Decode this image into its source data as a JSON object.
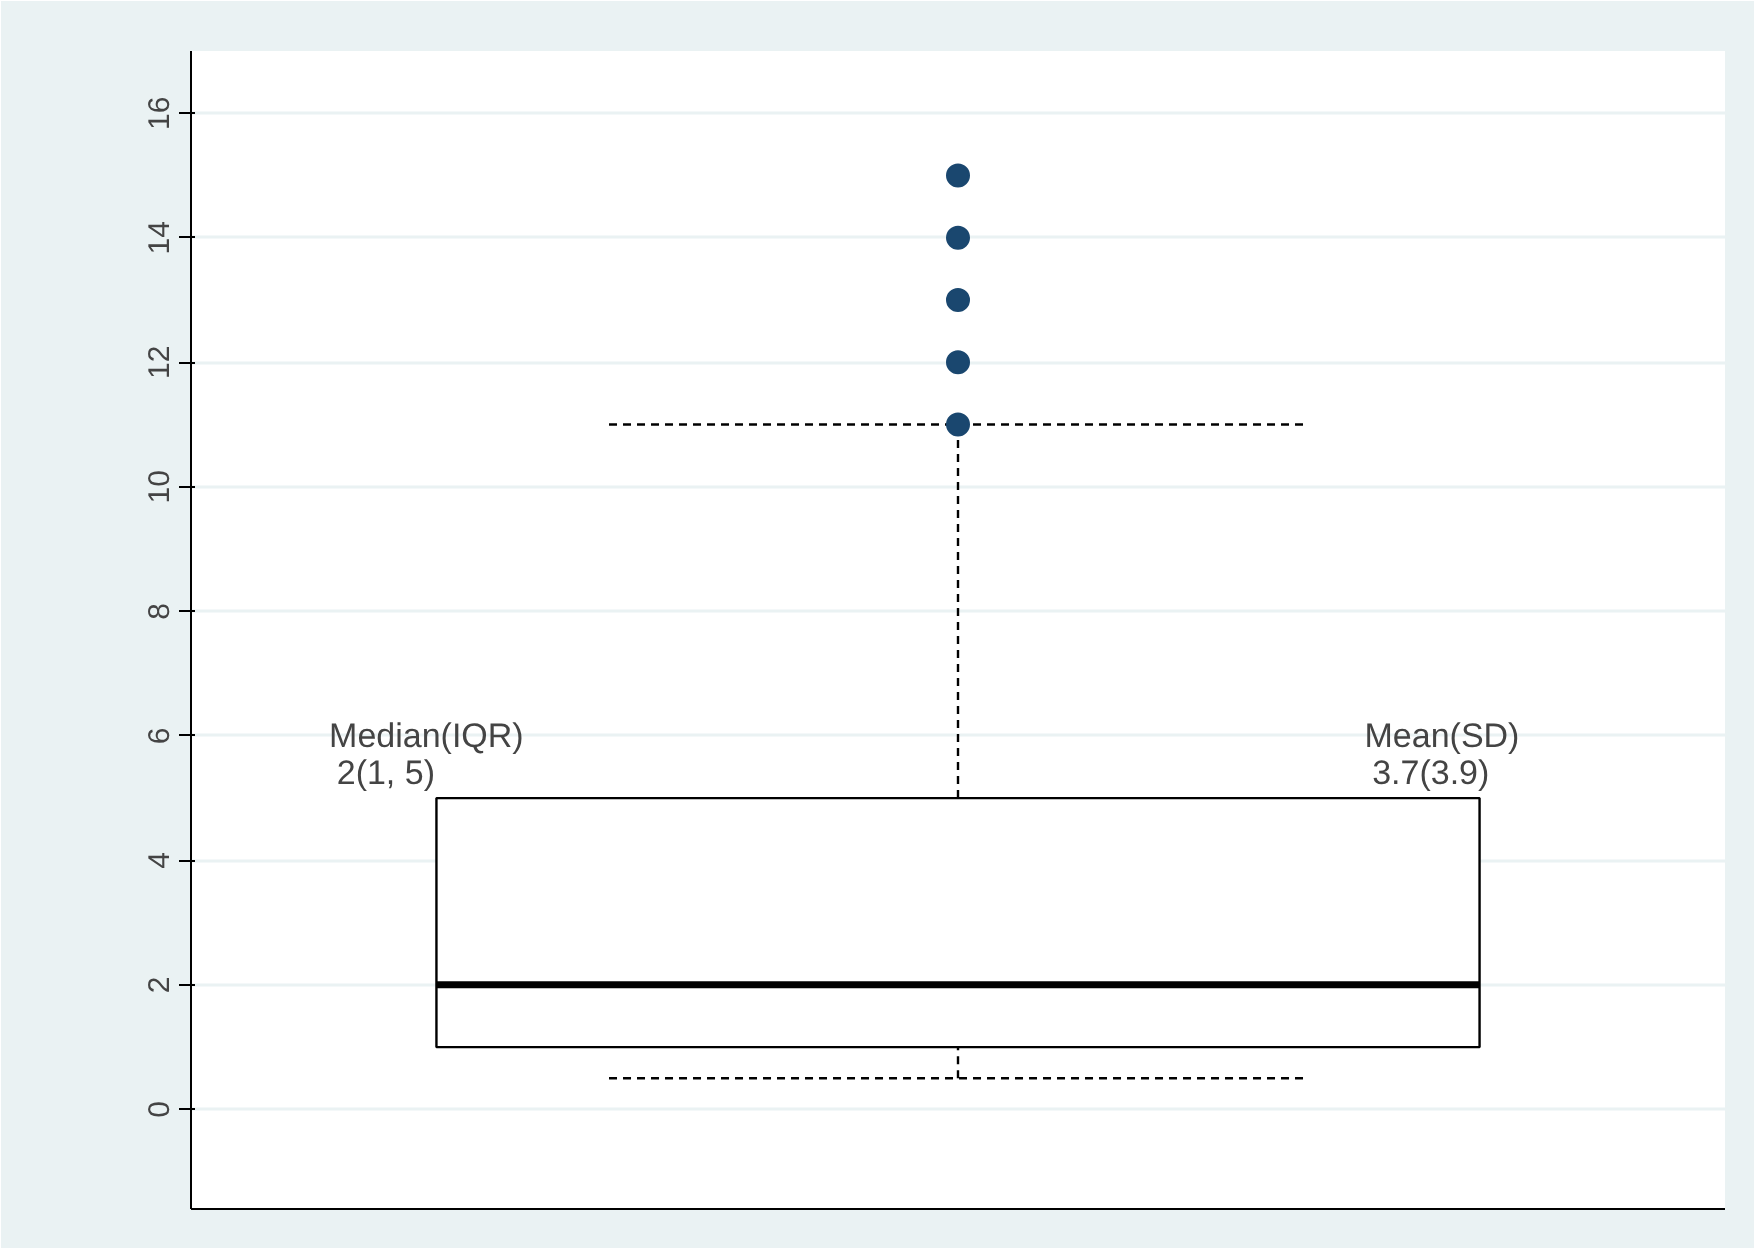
{
  "chart_data": {
    "type": "box",
    "categories": [
      null
    ],
    "boxes": [
      {
        "low": 0.5,
        "q1": 1,
        "median": 2,
        "q3": 5,
        "high": 11,
        "outliers": [
          11,
          12,
          13,
          14,
          15
        ]
      }
    ],
    "ylim": [
      -1.6,
      17
    ],
    "yticks": [
      0,
      2,
      4,
      6,
      8,
      10,
      12,
      14,
      16
    ],
    "grid": "y",
    "tick_labels": "y",
    "annotations": [
      "Median(IQR)\n2(1, 5)",
      "Mean(SD)\n3.7(3.9)"
    ]
  }
}
